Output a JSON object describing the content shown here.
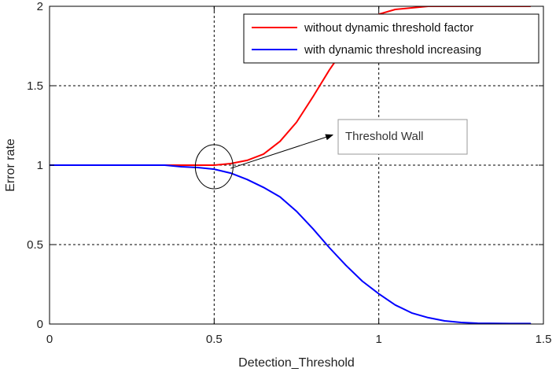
{
  "chart_data": {
    "type": "line",
    "title": "",
    "xlabel": "Detection_Threshold",
    "ylabel": "Error rate",
    "xlim": [
      0,
      1.5
    ],
    "ylim": [
      0,
      2
    ],
    "xticks": [
      0,
      0.5,
      1,
      1.5
    ],
    "xtick_labels": [
      "0",
      "0.5",
      "1",
      "1.5"
    ],
    "yticks": [
      0,
      0.5,
      1,
      1.5,
      2
    ],
    "ytick_labels": [
      "0",
      "0.5",
      "1",
      "1.5",
      "2"
    ],
    "grid": true,
    "legend_position": "top-right",
    "series": [
      {
        "name": "without dynamic threshold factor",
        "color": "#ff0000",
        "x": [
          0.34,
          0.4,
          0.45,
          0.5,
          0.55,
          0.6,
          0.65,
          0.7,
          0.75,
          0.8,
          0.85,
          0.9,
          0.95,
          1.0,
          1.05,
          1.1,
          1.15,
          1.2,
          1.3,
          1.4,
          1.46
        ],
        "y": [
          1.0,
          1.0,
          1.0,
          1.0,
          1.01,
          1.03,
          1.07,
          1.15,
          1.27,
          1.43,
          1.6,
          1.75,
          1.88,
          1.95,
          1.98,
          1.99,
          2.0,
          2.0,
          2.0,
          2.0,
          2.0
        ]
      },
      {
        "name": "with dynamic threshold increasing",
        "color": "#0000ff",
        "x": [
          0.0,
          0.1,
          0.2,
          0.3,
          0.35,
          0.4,
          0.45,
          0.5,
          0.55,
          0.6,
          0.65,
          0.7,
          0.75,
          0.8,
          0.85,
          0.9,
          0.95,
          1.0,
          1.05,
          1.1,
          1.15,
          1.2,
          1.25,
          1.3,
          1.4,
          1.46
        ],
        "y": [
          1.0,
          1.0,
          1.0,
          1.0,
          1.0,
          0.99,
          0.985,
          0.975,
          0.95,
          0.91,
          0.86,
          0.8,
          0.71,
          0.6,
          0.48,
          0.37,
          0.27,
          0.19,
          0.12,
          0.07,
          0.04,
          0.02,
          0.01,
          0.005,
          0.003,
          0.003
        ]
      }
    ],
    "annotations": [
      {
        "text": "Threshold Wall",
        "arrow_from": [
          0.55,
          0.98
        ],
        "arrow_to": [
          0.86,
          1.19
        ],
        "circle_center": [
          0.5,
          0.99
        ]
      }
    ]
  }
}
